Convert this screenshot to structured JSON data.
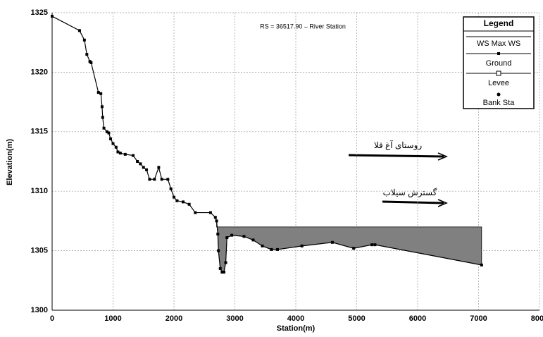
{
  "chart_data": {
    "type": "line",
    "annotation": "RS = 36517.90  –  River Station",
    "x_label": "Station(m)",
    "y_label": "Elevation(m)",
    "xlim": [
      0,
      8000
    ],
    "xticks": [
      0,
      1000,
      2000,
      3000,
      4000,
      5000,
      6000,
      7000,
      8000
    ],
    "ylim": [
      1300,
      1325
    ],
    "yticks": [
      1300,
      1305,
      1310,
      1315,
      1320,
      1325
    ],
    "grid": true,
    "legend": "upper right",
    "legend_title": "Legend",
    "series": [
      {
        "name": "WS Max WS",
        "color": "#808080",
        "x": [
          2700,
          7050
        ],
        "values": [
          1307,
          1307
        ]
      },
      {
        "name": "Ground",
        "color": "#000000",
        "x": [
          0,
          450,
          530,
          570,
          620,
          640,
          760,
          800,
          820,
          830,
          850,
          900,
          930,
          960,
          1000,
          1050,
          1080,
          1120,
          1200,
          1330,
          1400,
          1450,
          1500,
          1550,
          1600,
          1680,
          1750,
          1800,
          1900,
          1950,
          2000,
          2050,
          2150,
          2250,
          2350,
          2600,
          2680,
          2700,
          2720,
          2730,
          2760,
          2790,
          2820,
          2850,
          2870,
          2950,
          3150,
          3300,
          3450,
          3600,
          3700,
          4100,
          4600,
          4950,
          5250,
          5300,
          7050
        ],
        "values": [
          1324.7,
          1323.5,
          1322.7,
          1321.5,
          1320.9,
          1320.8,
          1318.3,
          1318.2,
          1317.1,
          1316.2,
          1315.3,
          1315.0,
          1314.9,
          1314.4,
          1314.0,
          1313.7,
          1313.3,
          1313.2,
          1313.1,
          1313.0,
          1312.5,
          1312.3,
          1312.0,
          1311.8,
          1311.0,
          1311.0,
          1312.0,
          1311.0,
          1311.0,
          1310.2,
          1309.5,
          1309.2,
          1309.1,
          1308.9,
          1308.2,
          1308.2,
          1307.8,
          1307.5,
          1306.4,
          1305.0,
          1303.5,
          1303.2,
          1303.2,
          1304.0,
          1306.1,
          1306.3,
          1306.2,
          1305.9,
          1305.4,
          1305.1,
          1305.1,
          1305.4,
          1305.7,
          1305.2,
          1305.5,
          1305.5,
          1303.8
        ]
      },
      {
        "name": "Levee",
        "color": "#000000",
        "x": [],
        "values": []
      },
      {
        "name": "Bank Sta",
        "color": "#000000",
        "x": [],
        "values": []
      }
    ],
    "callouts": [
      "روستای آغ قلا",
      "گسترش سیلاب"
    ]
  }
}
